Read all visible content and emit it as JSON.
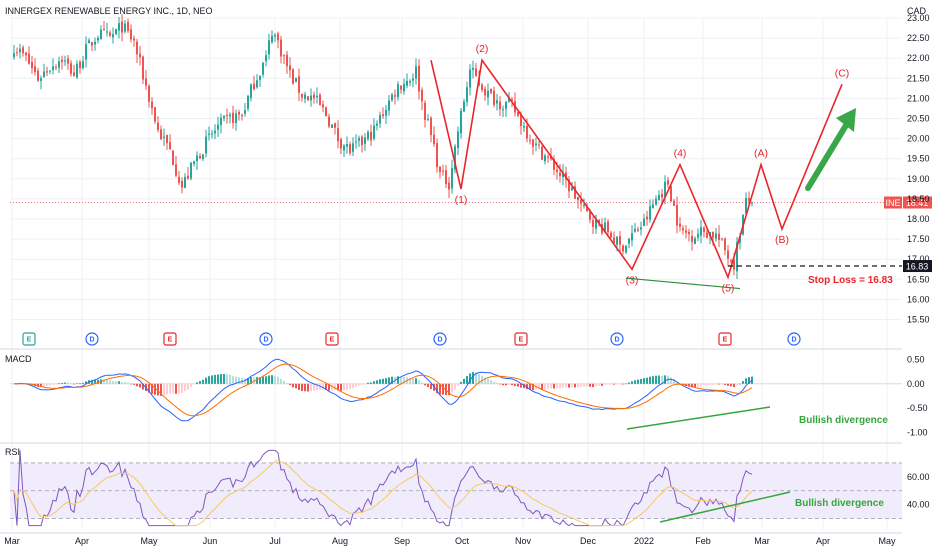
{
  "header": {
    "title": "INNERGEX RENEWABLE ENERGY INC., 1D, NEO",
    "currency": "CAD"
  },
  "chart_data": {
    "type": "candlestick",
    "title": "INNERGEX RENEWABLE ENERGY INC., 1D, NEO",
    "x_axis_months": [
      "Mar",
      "Apr",
      "May",
      "Jun",
      "Jul",
      "Aug",
      "Sep",
      "Oct",
      "Nov",
      "Dec",
      "2022",
      "Feb",
      "Mar",
      "Apr",
      "May"
    ],
    "price_axis": {
      "ylim": [
        15.5,
        23.0
      ],
      "ticks": [
        "23.00",
        "22.50",
        "22.00",
        "21.50",
        "21.00",
        "20.50",
        "20.00",
        "19.50",
        "19.00",
        "18.50",
        "18.00",
        "17.50",
        "17.00",
        "16.50",
        "16.00",
        "15.50"
      ]
    },
    "price_series_approx": [
      [
        0,
        22.3
      ],
      [
        4,
        22.0
      ],
      [
        8,
        21.5
      ],
      [
        12,
        21.8
      ],
      [
        16,
        22.0
      ],
      [
        20,
        21.6
      ],
      [
        24,
        22.2
      ],
      [
        28,
        22.6
      ],
      [
        32,
        22.5
      ],
      [
        36,
        22.8
      ],
      [
        40,
        22.4
      ],
      [
        44,
        21.3
      ],
      [
        48,
        20.2
      ],
      [
        52,
        19.7
      ],
      [
        56,
        18.8
      ],
      [
        60,
        19.4
      ],
      [
        64,
        19.9
      ],
      [
        68,
        20.3
      ],
      [
        72,
        20.5
      ],
      [
        76,
        20.6
      ],
      [
        80,
        21.4
      ],
      [
        84,
        22.0
      ],
      [
        86,
        22.7
      ],
      [
        88,
        22.4
      ],
      [
        92,
        21.6
      ],
      [
        96,
        21.1
      ],
      [
        100,
        21.0
      ],
      [
        104,
        20.6
      ],
      [
        108,
        20.0
      ],
      [
        112,
        19.7
      ],
      [
        116,
        19.9
      ],
      [
        120,
        20.2
      ],
      [
        124,
        20.8
      ],
      [
        128,
        21.3
      ],
      [
        132,
        21.5
      ],
      [
        134,
        21.7
      ],
      [
        136,
        20.9
      ],
      [
        140,
        19.8
      ],
      [
        142,
        19.1
      ],
      [
        145,
        18.9
      ],
      [
        148,
        20.2
      ],
      [
        152,
        21.7
      ],
      [
        155,
        21.4
      ],
      [
        158,
        21.1
      ],
      [
        162,
        20.9
      ],
      [
        166,
        20.8
      ],
      [
        170,
        20.3
      ],
      [
        174,
        19.8
      ],
      [
        178,
        19.5
      ],
      [
        182,
        19.1
      ],
      [
        186,
        18.7
      ],
      [
        190,
        18.2
      ],
      [
        194,
        17.9
      ],
      [
        198,
        17.7
      ],
      [
        200,
        17.5
      ],
      [
        202,
        17.3
      ],
      [
        204,
        17.4
      ],
      [
        206,
        17.6
      ],
      [
        210,
        17.9
      ],
      [
        214,
        18.5
      ],
      [
        218,
        18.9
      ],
      [
        220,
        18.3
      ],
      [
        222,
        17.7
      ],
      [
        226,
        17.6
      ],
      [
        230,
        17.7
      ],
      [
        234,
        17.6
      ],
      [
        238,
        17.1
      ],
      [
        240,
        16.9
      ],
      [
        242,
        17.7
      ],
      [
        244,
        18.4
      ],
      [
        246,
        18.5
      ]
    ],
    "last_price": {
      "symbol": "INE",
      "value": "18.41"
    },
    "stop_loss": {
      "value": "16.83",
      "text": "Stop Loss = 16.83"
    },
    "wave_labels": [
      "(1)",
      "(2)",
      "(3)",
      "(4)",
      "(5)",
      "(A)",
      "(B)",
      "(C)"
    ],
    "wave_points": [
      {
        "t": 139,
        "v": 21.95
      },
      {
        "t": 149,
        "v": 18.75
      },
      {
        "t": 156,
        "v": 21.95
      },
      {
        "t": 206,
        "v": 16.75
      },
      {
        "t": 222,
        "v": 19.35
      },
      {
        "t": 238,
        "v": 16.55
      },
      {
        "t": 249,
        "v": 19.35
      },
      {
        "t": 256,
        "v": 17.75
      },
      {
        "t": 276,
        "v": 21.35
      }
    ],
    "events": [
      {
        "t": 5,
        "label": "E",
        "kind": "earnings"
      },
      {
        "t": 26,
        "label": "D",
        "kind": "dividend"
      },
      {
        "t": 52,
        "label": "E",
        "kind": "earnings"
      },
      {
        "t": 84,
        "label": "D",
        "kind": "dividend"
      },
      {
        "t": 106,
        "label": "E",
        "kind": "earnings"
      },
      {
        "t": 142,
        "label": "D",
        "kind": "dividend"
      },
      {
        "t": 169,
        "label": "E",
        "kind": "earnings"
      },
      {
        "t": 201,
        "label": "D",
        "kind": "dividend"
      },
      {
        "t": 237,
        "label": "E",
        "kind": "earnings"
      },
      {
        "t": 260,
        "label": "D",
        "kind": "dividend"
      }
    ],
    "macd": {
      "label": "MACD",
      "ticks": [
        "0.50",
        "0.00",
        "-0.50",
        "-1.00"
      ],
      "ylim": [
        -1.05,
        0.55
      ],
      "annotation": "Bullish divergence"
    },
    "rsi": {
      "label": "RSI",
      "ticks": [
        "60.00",
        "40.00"
      ],
      "ylim": [
        24,
        80
      ],
      "band": [
        30,
        70
      ],
      "annotation": "Bullish divergence"
    }
  }
}
